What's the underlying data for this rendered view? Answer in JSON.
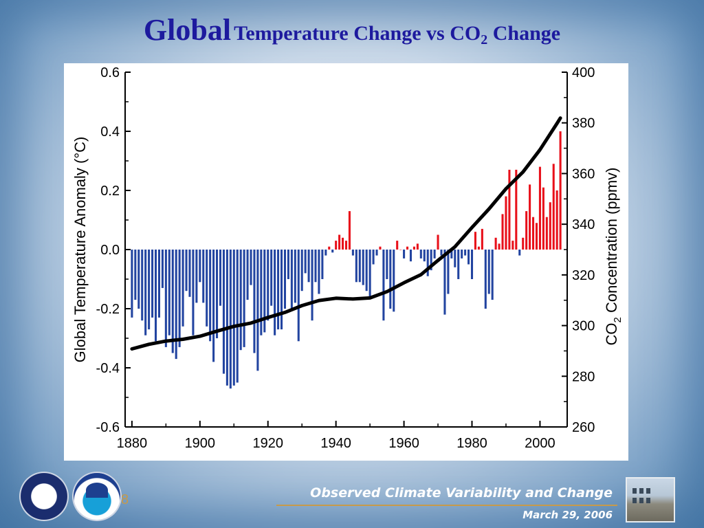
{
  "slide": {
    "title_big": "Global",
    "title_rest": "Temperature Change vs CO",
    "title_sub": "2",
    "title_end": " Change",
    "footer_title": "Observed Climate Variability and Change",
    "footer_date": "March 29, 2006",
    "page_number": "8",
    "logos": [
      "department-of-commerce-seal",
      "noaa-seal",
      "building-photo"
    ]
  },
  "chart_data": {
    "type": "bar",
    "title": "",
    "xlabel": "",
    "ylabel_left": "Global Temperature Anomaly (°C)",
    "ylabel_right_parts": [
      "CO",
      "2",
      " Concentration (ppmv)"
    ],
    "xlim": [
      1878,
      2008
    ],
    "ylim_left": [
      -0.6,
      0.6
    ],
    "ylim_right": [
      260,
      400
    ],
    "x_ticks": [
      1880,
      1900,
      1920,
      1940,
      1960,
      1980,
      2000
    ],
    "y_ticks_left": [
      {
        "v": 0.6,
        "label": "0.6"
      },
      {
        "v": 0.4,
        "label": "0.4"
      },
      {
        "v": 0.2,
        "label": "0.2"
      },
      {
        "v": 0.0,
        "label": "0.0"
      },
      {
        "v": -0.2,
        "label": "-0.2"
      },
      {
        "v": -0.4,
        "label": "-0.4"
      },
      {
        "v": -0.6,
        "label": "-0.6"
      }
    ],
    "y_ticks_right": [
      {
        "v": 400,
        "label": "400"
      },
      {
        "v": 380,
        "label": "380"
      },
      {
        "v": 360,
        "label": "360"
      },
      {
        "v": 340,
        "label": "340"
      },
      {
        "v": 320,
        "label": "320"
      },
      {
        "v": 300,
        "label": "300"
      },
      {
        "v": 280,
        "label": "280"
      },
      {
        "v": 260,
        "label": "260"
      }
    ],
    "colors": {
      "negative": "#2244a0",
      "positive": "#e8101a",
      "co2_line": "#000000"
    },
    "temperature_series": {
      "name": "Global Temperature Anomaly",
      "years_start": 1880,
      "years_end": 2006,
      "values": [
        -0.23,
        -0.17,
        -0.2,
        -0.24,
        -0.29,
        -0.27,
        -0.23,
        -0.31,
        -0.23,
        -0.13,
        -0.33,
        -0.29,
        -0.35,
        -0.37,
        -0.33,
        -0.26,
        -0.14,
        -0.16,
        -0.29,
        -0.18,
        -0.11,
        -0.18,
        -0.26,
        -0.31,
        -0.38,
        -0.3,
        -0.19,
        -0.42,
        -0.46,
        -0.47,
        -0.46,
        -0.45,
        -0.34,
        -0.33,
        -0.17,
        -0.12,
        -0.35,
        -0.41,
        -0.29,
        -0.28,
        -0.24,
        -0.19,
        -0.29,
        -0.27,
        -0.27,
        -0.2,
        -0.1,
        -0.2,
        -0.18,
        -0.31,
        -0.14,
        -0.08,
        -0.11,
        -0.24,
        -0.11,
        -0.15,
        -0.1,
        -0.02,
        0.01,
        -0.01,
        0.03,
        0.05,
        0.04,
        0.03,
        0.13,
        -0.02,
        -0.11,
        -0.11,
        -0.12,
        -0.14,
        -0.16,
        -0.05,
        -0.02,
        0.01,
        -0.24,
        -0.1,
        -0.2,
        -0.21,
        0.03,
        0.0,
        -0.03,
        0.01,
        -0.04,
        0.01,
        0.02,
        -0.03,
        -0.04,
        -0.09,
        -0.07,
        -0.03,
        0.05,
        -0.02,
        -0.22,
        -0.15,
        -0.03,
        -0.06,
        -0.1,
        -0.03,
        -0.02,
        -0.05,
        -0.1,
        0.06,
        0.01,
        0.07,
        -0.2,
        -0.15,
        -0.17,
        0.04,
        0.02,
        0.12,
        0.18,
        0.27,
        0.03,
        0.27,
        -0.02,
        0.04,
        0.13,
        0.22,
        0.11,
        0.09,
        0.28,
        0.21,
        0.11,
        0.16,
        0.29,
        0.2,
        0.4
      ],
      "values_note_years": "1880-2006"
    },
    "co2_series": {
      "name": "CO2 Concentration",
      "x": [
        1880,
        1885,
        1890,
        1895,
        1900,
        1905,
        1910,
        1915,
        1920,
        1925,
        1930,
        1935,
        1940,
        1945,
        1950,
        1955,
        1960,
        1965,
        1970,
        1975,
        1980,
        1985,
        1990,
        1995,
        2000,
        2005,
        2006
      ],
      "y": [
        290.8,
        292.6,
        293.9,
        294.6,
        295.8,
        297.8,
        299.7,
        301.0,
        303.2,
        305.2,
        307.9,
        309.9,
        310.8,
        310.5,
        310.9,
        313.4,
        316.9,
        320.1,
        325.7,
        331.1,
        338.7,
        346.0,
        354.0,
        360.6,
        369.4,
        379.8,
        381.9
      ]
    }
  }
}
